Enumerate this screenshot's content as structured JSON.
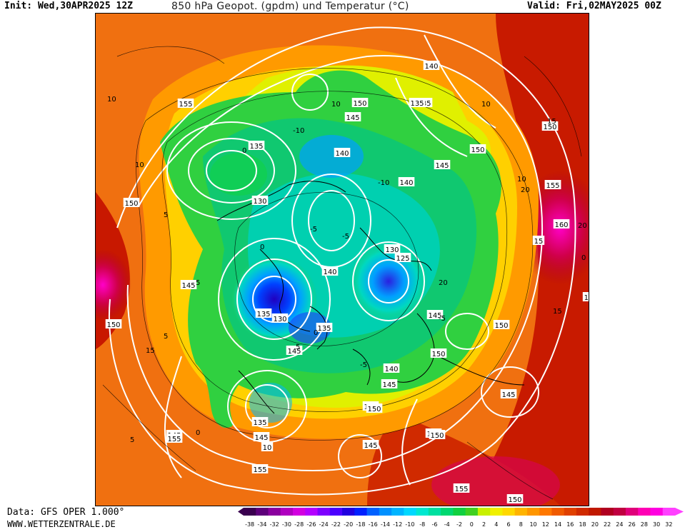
{
  "header": {
    "init": "Init: Wed,30APR2025 12Z",
    "title": "850 hPa Geopot. (gpdm) und Temperatur (°C)",
    "valid": "Valid: Fri,02MAY2025 00Z"
  },
  "footer": {
    "data_source": "Data: GFS OPER 1.000°",
    "website": "WWW.WETTERZENTRALE.DE"
  },
  "map": {
    "geopotential_labels": [
      "155",
      "135",
      "135",
      "150",
      "145",
      "150",
      "145",
      "150",
      "140",
      "135",
      "140",
      "130",
      "125",
      "140",
      "135",
      "130",
      "140",
      "145",
      "145",
      "135",
      "145",
      "150",
      "150",
      "150",
      "155",
      "145",
      "150",
      "140",
      "145",
      "150",
      "145",
      "155",
      "155",
      "145",
      "155",
      "155",
      "150",
      "155",
      "160",
      "150",
      "15",
      "130",
      "15",
      "150",
      "10",
      "145",
      "135"
    ],
    "temperature_labels": [
      "-10",
      "-5",
      "0",
      "5",
      "10",
      "15",
      "20",
      "-5",
      "0",
      "5",
      "10",
      "-10",
      "-5",
      "0",
      "5",
      "10",
      "15",
      "20",
      "5",
      "10",
      "0",
      "-5",
      "20",
      "15",
      "10",
      "5",
      "0"
    ]
  },
  "legend": {
    "ticks": [
      "-38",
      "-34",
      "-32",
      "-30",
      "-28",
      "-26",
      "-24",
      "-22",
      "-20",
      "-18",
      "-16",
      "-14",
      "-12",
      "-10",
      "-8",
      "-6",
      "-4",
      "-2",
      "0",
      "2",
      "4",
      "6",
      "8",
      "10",
      "12",
      "14",
      "16",
      "18",
      "20",
      "22",
      "24",
      "26",
      "28",
      "30",
      "32"
    ],
    "colors": [
      "#3a004f",
      "#5d007a",
      "#8a009e",
      "#b000c0",
      "#d200e0",
      "#b400ff",
      "#7d00ff",
      "#4a00ff",
      "#2000e0",
      "#0020ff",
      "#0060ff",
      "#0090ff",
      "#00b4ff",
      "#00d8ff",
      "#00e8d0",
      "#00e0a0",
      "#00d870",
      "#10d040",
      "#40d020",
      "#c8f000",
      "#f0f000",
      "#ffd800",
      "#ffb400",
      "#ff9600",
      "#ff7800",
      "#f05a00",
      "#e04000",
      "#d02a00",
      "#c01800",
      "#b00020",
      "#c00040",
      "#e0007a",
      "#ff00b4",
      "#ff00e0",
      "#ff40ff"
    ]
  }
}
